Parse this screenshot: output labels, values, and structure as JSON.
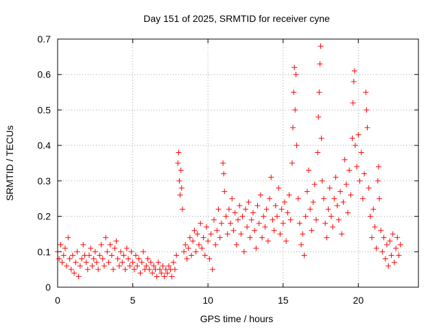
{
  "chart_data": {
    "type": "scatter",
    "title": "Day 151 of 2025, SRMTID for receiver cyne",
    "xlabel": "GPS time / hours",
    "ylabel": "SRMTID / TECUs",
    "xlim": [
      0,
      24
    ],
    "ylim": [
      0,
      0.7
    ],
    "xticks": [
      0,
      5,
      10,
      15,
      20
    ],
    "yticks": [
      0,
      0.1,
      0.2,
      0.3,
      0.4,
      0.5,
      0.6,
      0.7
    ],
    "grid": true,
    "marker": "+",
    "color": "#ff0000",
    "series": [
      {
        "name": "SRMTID",
        "points": [
          [
            0.0,
            0.1
          ],
          [
            0.1,
            0.08
          ],
          [
            0.2,
            0.12
          ],
          [
            0.3,
            0.07
          ],
          [
            0.4,
            0.09
          ],
          [
            0.5,
            0.11
          ],
          [
            0.6,
            0.06
          ],
          [
            0.7,
            0.14
          ],
          [
            0.8,
            0.08
          ],
          [
            0.9,
            0.05
          ],
          [
            1.0,
            0.09
          ],
          [
            1.1,
            0.04
          ],
          [
            1.2,
            0.07
          ],
          [
            1.3,
            0.1
          ],
          [
            1.4,
            0.03
          ],
          [
            1.5,
            0.06
          ],
          [
            1.6,
            0.08
          ],
          [
            1.7,
            0.12
          ],
          [
            1.8,
            0.09
          ],
          [
            1.9,
            0.07
          ],
          [
            2.0,
            0.05
          ],
          [
            2.1,
            0.09
          ],
          [
            2.2,
            0.11
          ],
          [
            2.3,
            0.06
          ],
          [
            2.4,
            0.08
          ],
          [
            2.5,
            0.1
          ],
          [
            2.6,
            0.07
          ],
          [
            2.7,
            0.05
          ],
          [
            2.8,
            0.09
          ],
          [
            2.9,
            0.12
          ],
          [
            3.0,
            0.08
          ],
          [
            3.1,
            0.06
          ],
          [
            3.2,
            0.14
          ],
          [
            3.3,
            0.1
          ],
          [
            3.4,
            0.07
          ],
          [
            3.5,
            0.12
          ],
          [
            3.6,
            0.09
          ],
          [
            3.7,
            0.05
          ],
          [
            3.8,
            0.11
          ],
          [
            3.9,
            0.13
          ],
          [
            4.0,
            0.08
          ],
          [
            4.1,
            0.06
          ],
          [
            4.2,
            0.1
          ],
          [
            4.3,
            0.07
          ],
          [
            4.4,
            0.09
          ],
          [
            4.5,
            0.05
          ],
          [
            4.6,
            0.11
          ],
          [
            4.7,
            0.08
          ],
          [
            4.8,
            0.06
          ],
          [
            4.9,
            0.1
          ],
          [
            5.0,
            0.07
          ],
          [
            5.1,
            0.05
          ],
          [
            5.2,
            0.09
          ],
          [
            5.3,
            0.06
          ],
          [
            5.4,
            0.08
          ],
          [
            5.5,
            0.04
          ],
          [
            5.6,
            0.07
          ],
          [
            5.7,
            0.1
          ],
          [
            5.8,
            0.05
          ],
          [
            5.9,
            0.06
          ],
          [
            6.0,
            0.08
          ],
          [
            6.1,
            0.05
          ],
          [
            6.2,
            0.07
          ],
          [
            6.3,
            0.04
          ],
          [
            6.4,
            0.06
          ],
          [
            6.5,
            0.05
          ],
          [
            6.6,
            0.03
          ],
          [
            6.7,
            0.07
          ],
          [
            6.8,
            0.05
          ],
          [
            6.9,
            0.04
          ],
          [
            7.0,
            0.06
          ],
          [
            7.1,
            0.03
          ],
          [
            7.2,
            0.05
          ],
          [
            7.3,
            0.04
          ],
          [
            7.4,
            0.06
          ],
          [
            7.5,
            0.05
          ],
          [
            7.6,
            0.03
          ],
          [
            7.7,
            0.07
          ],
          [
            7.8,
            0.05
          ],
          [
            7.9,
            0.09
          ],
          [
            8.0,
            0.35
          ],
          [
            8.05,
            0.38
          ],
          [
            8.1,
            0.3
          ],
          [
            8.15,
            0.26
          ],
          [
            8.2,
            0.33
          ],
          [
            8.25,
            0.28
          ],
          [
            8.3,
            0.22
          ],
          [
            8.4,
            0.1
          ],
          [
            8.5,
            0.12
          ],
          [
            8.6,
            0.08
          ],
          [
            8.7,
            0.11
          ],
          [
            8.8,
            0.14
          ],
          [
            8.9,
            0.09
          ],
          [
            9.0,
            0.13
          ],
          [
            9.1,
            0.16
          ],
          [
            9.2,
            0.1
          ],
          [
            9.3,
            0.15
          ],
          [
            9.4,
            0.12
          ],
          [
            9.5,
            0.18
          ],
          [
            9.6,
            0.11
          ],
          [
            9.7,
            0.14
          ],
          [
            9.8,
            0.09
          ],
          [
            9.9,
            0.17
          ],
          [
            10.0,
            0.13
          ],
          [
            10.1,
            0.08
          ],
          [
            10.2,
            0.15
          ],
          [
            10.3,
            0.05
          ],
          [
            10.4,
            0.19
          ],
          [
            10.5,
            0.12
          ],
          [
            10.6,
            0.16
          ],
          [
            10.7,
            0.22
          ],
          [
            10.8,
            0.14
          ],
          [
            10.9,
            0.18
          ],
          [
            11.0,
            0.35
          ],
          [
            11.05,
            0.32
          ],
          [
            11.1,
            0.27
          ],
          [
            11.2,
            0.2
          ],
          [
            11.3,
            0.15
          ],
          [
            11.4,
            0.22
          ],
          [
            11.5,
            0.18
          ],
          [
            11.6,
            0.25
          ],
          [
            11.7,
            0.16
          ],
          [
            11.8,
            0.21
          ],
          [
            11.9,
            0.12
          ],
          [
            12.0,
            0.19
          ],
          [
            12.1,
            0.23
          ],
          [
            12.2,
            0.15
          ],
          [
            12.3,
            0.2
          ],
          [
            12.4,
            0.1
          ],
          [
            12.5,
            0.22
          ],
          [
            12.6,
            0.17
          ],
          [
            12.7,
            0.24
          ],
          [
            12.8,
            0.14
          ],
          [
            12.9,
            0.19
          ],
          [
            13.0,
            0.21
          ],
          [
            13.1,
            0.16
          ],
          [
            13.2,
            0.11
          ],
          [
            13.3,
            0.23
          ],
          [
            13.4,
            0.18
          ],
          [
            13.5,
            0.26
          ],
          [
            13.6,
            0.14
          ],
          [
            13.7,
            0.2
          ],
          [
            13.8,
            0.17
          ],
          [
            13.9,
            0.22
          ],
          [
            14.0,
            0.13
          ],
          [
            14.1,
            0.25
          ],
          [
            14.2,
            0.31
          ],
          [
            14.3,
            0.19
          ],
          [
            14.4,
            0.16
          ],
          [
            14.5,
            0.23
          ],
          [
            14.6,
            0.2
          ],
          [
            14.7,
            0.28
          ],
          [
            14.8,
            0.15
          ],
          [
            14.9,
            0.22
          ],
          [
            15.0,
            0.18
          ],
          [
            15.1,
            0.24
          ],
          [
            15.2,
            0.13
          ],
          [
            15.3,
            0.21
          ],
          [
            15.4,
            0.26
          ],
          [
            15.5,
            0.19
          ],
          [
            15.6,
            0.35
          ],
          [
            15.65,
            0.45
          ],
          [
            15.7,
            0.55
          ],
          [
            15.75,
            0.62
          ],
          [
            15.8,
            0.5
          ],
          [
            15.85,
            0.6
          ],
          [
            15.9,
            0.4
          ],
          [
            16.0,
            0.25
          ],
          [
            16.1,
            0.18
          ],
          [
            16.2,
            0.12
          ],
          [
            16.3,
            0.15
          ],
          [
            16.4,
            0.09
          ],
          [
            16.5,
            0.2
          ],
          [
            16.6,
            0.27
          ],
          [
            16.7,
            0.33
          ],
          [
            16.8,
            0.22
          ],
          [
            16.9,
            0.16
          ],
          [
            17.0,
            0.24
          ],
          [
            17.1,
            0.29
          ],
          [
            17.2,
            0.19
          ],
          [
            17.3,
            0.38
          ],
          [
            17.35,
            0.48
          ],
          [
            17.4,
            0.55
          ],
          [
            17.45,
            0.63
          ],
          [
            17.5,
            0.68
          ],
          [
            17.55,
            0.42
          ],
          [
            17.6,
            0.3
          ],
          [
            17.7,
            0.25
          ],
          [
            17.8,
            0.18
          ],
          [
            17.9,
            0.14
          ],
          [
            18.0,
            0.22
          ],
          [
            18.1,
            0.28
          ],
          [
            18.2,
            0.2
          ],
          [
            18.3,
            0.17
          ],
          [
            18.4,
            0.25
          ],
          [
            18.5,
            0.31
          ],
          [
            18.6,
            0.23
          ],
          [
            18.7,
            0.19
          ],
          [
            18.8,
            0.27
          ],
          [
            18.9,
            0.15
          ],
          [
            19.0,
            0.24
          ],
          [
            19.1,
            0.36
          ],
          [
            19.2,
            0.29
          ],
          [
            19.3,
            0.21
          ],
          [
            19.4,
            0.33
          ],
          [
            19.5,
            0.26
          ],
          [
            19.6,
            0.42
          ],
          [
            19.65,
            0.52
          ],
          [
            19.7,
            0.58
          ],
          [
            19.75,
            0.61
          ],
          [
            19.8,
            0.4
          ],
          [
            19.9,
            0.34
          ],
          [
            20.0,
            0.43
          ],
          [
            20.1,
            0.3
          ],
          [
            20.2,
            0.38
          ],
          [
            20.3,
            0.25
          ],
          [
            20.4,
            0.32
          ],
          [
            20.5,
            0.55
          ],
          [
            20.55,
            0.5
          ],
          [
            20.6,
            0.45
          ],
          [
            20.7,
            0.28
          ],
          [
            20.8,
            0.2
          ],
          [
            20.9,
            0.14
          ],
          [
            21.0,
            0.22
          ],
          [
            21.1,
            0.17
          ],
          [
            21.2,
            0.11
          ],
          [
            21.3,
            0.3
          ],
          [
            21.35,
            0.34
          ],
          [
            21.4,
            0.25
          ],
          [
            21.5,
            0.16
          ],
          [
            21.6,
            0.1
          ],
          [
            21.7,
            0.14
          ],
          [
            21.8,
            0.08
          ],
          [
            21.9,
            0.12
          ],
          [
            22.0,
            0.06
          ],
          [
            22.1,
            0.13
          ],
          [
            22.2,
            0.09
          ],
          [
            22.3,
            0.15
          ],
          [
            22.4,
            0.07
          ],
          [
            22.5,
            0.11
          ],
          [
            22.6,
            0.14
          ],
          [
            22.7,
            0.09
          ],
          [
            22.8,
            0.12
          ]
        ]
      }
    ]
  }
}
